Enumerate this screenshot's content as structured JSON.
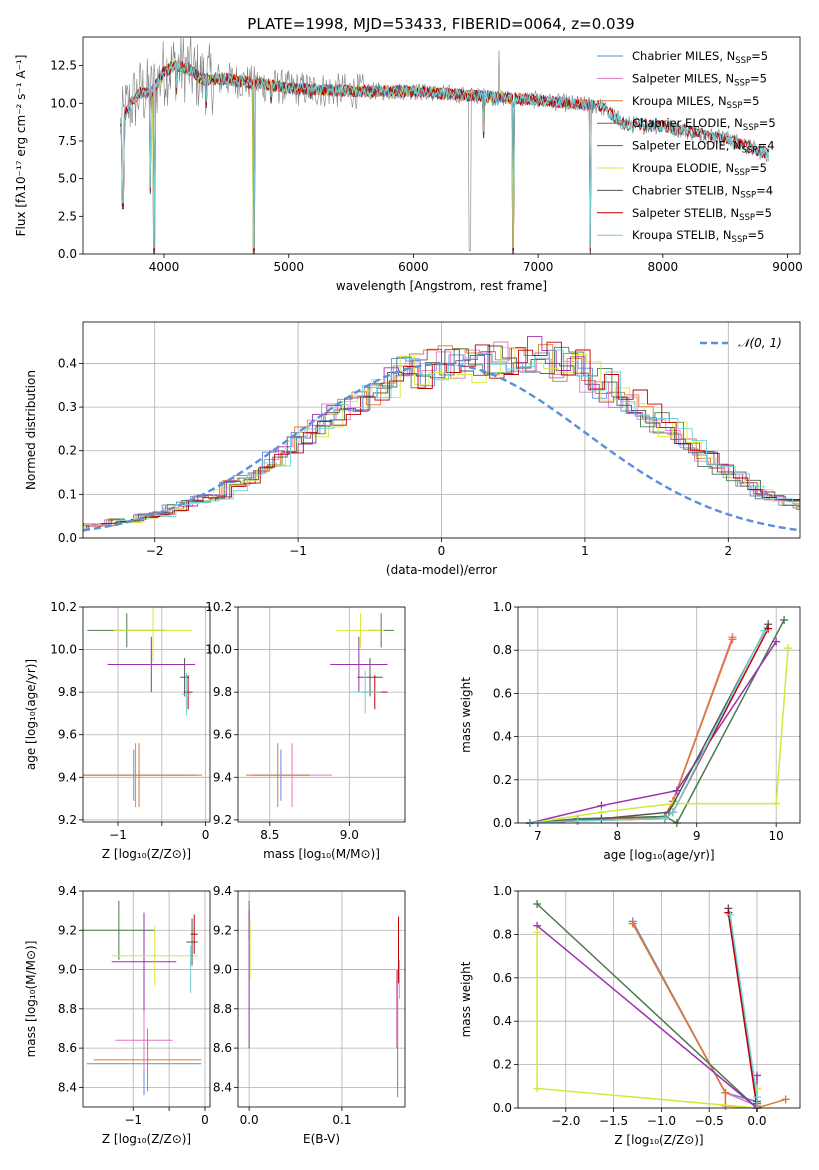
{
  "colors": {
    "chabrier_miles": "#5b8fd8",
    "salpeter_miles": "#e377c2",
    "kroupa_miles": "#e0772a",
    "chabrier_elodie": "#4a7a4a",
    "salpeter_elodie": "#9b30b0",
    "kroupa_elodie": "#d4e83a",
    "chabrier_stelib": "#555555",
    "salpeter_stelib": "#c00000",
    "kroupa_stelib": "#70d0d8",
    "gaussian": "#5b8fd8",
    "spectrum": "#7f7f7f"
  },
  "chart_data": [
    {
      "type": "line",
      "title": "PLATE=1998, MJD=53433, FIBERID=0064, z=0.039",
      "xlabel": "wavelength [Angstrom, rest frame]",
      "ylabel": "Flux [fλ10⁻¹⁷ erg cm⁻² s⁻¹ A⁻¹]",
      "xlim": [
        3350,
        9100
      ],
      "ylim": [
        0,
        14.4
      ],
      "xticks": [
        4000,
        5000,
        6000,
        7000,
        8000,
        9000
      ],
      "yticks": [
        0.0,
        2.5,
        5.0,
        7.5,
        10.0,
        12.5
      ],
      "legend_position": "top-right",
      "legend": [
        {
          "label": "Chabrier MILES, N",
          "sub": "SSP",
          "suffix": "=5",
          "color_key": "chabrier_miles"
        },
        {
          "label": "Salpeter MILES, N",
          "sub": "SSP",
          "suffix": "=5",
          "color_key": "salpeter_miles"
        },
        {
          "label": "Kroupa MILES, N",
          "sub": "SSP",
          "suffix": "=5",
          "color_key": "kroupa_miles"
        },
        {
          "label": "Chabrier ELODIE, N",
          "sub": "SSP",
          "suffix": "=5",
          "color_key": "chabrier_elodie"
        },
        {
          "label": "Salpeter ELODIE, N",
          "sub": "SSP",
          "suffix": "=4",
          "color_key": "salpeter_elodie"
        },
        {
          "label": "Kroupa ELODIE, N",
          "sub": "SSP",
          "suffix": "=5",
          "color_key": "kroupa_elodie"
        },
        {
          "label": "Chabrier STELIB, N",
          "sub": "SSP",
          "suffix": "=4",
          "color_key": "chabrier_stelib"
        },
        {
          "label": "Salpeter STELIB, N",
          "sub": "SSP",
          "suffix": "=5",
          "color_key": "salpeter_stelib"
        },
        {
          "label": "Kroupa STELIB, N",
          "sub": "SSP",
          "suffix": "=5",
          "color_key": "kroupa_stelib"
        }
      ],
      "continuum": {
        "x": [
          3650,
          3700,
          3800,
          3900,
          4000,
          4100,
          4200,
          4300,
          4500,
          5000,
          5500,
          6000,
          6500,
          7000,
          7500,
          7700,
          8000,
          8500,
          8850
        ],
        "y": [
          8.3,
          9.6,
          10.7,
          10.7,
          12.1,
          12.5,
          12.3,
          11.6,
          11.6,
          11.0,
          10.8,
          10.8,
          10.5,
          10.2,
          9.8,
          8.6,
          8.5,
          7.7,
          6.6
        ]
      },
      "dips": [
        {
          "x": 3670,
          "y": 3.0
        },
        {
          "x": 3890,
          "y": 4.0
        },
        {
          "x": 3920,
          "y": 0.0
        },
        {
          "x": 4100,
          "y": 10.6
        },
        {
          "x": 4340,
          "y": 9.7
        },
        {
          "x": 4720,
          "y": 0.0
        },
        {
          "x": 4861,
          "y": 10.0
        },
        {
          "x": 5175,
          "y": 10.3
        },
        {
          "x": 6563,
          "y": 7.7
        },
        {
          "x": 6800,
          "y": 0.0
        },
        {
          "x": 7420,
          "y": 0.0
        }
      ]
    },
    {
      "type": "bar",
      "xlabel": "(data-model)/error",
      "ylabel": "Normed distribution",
      "xlim": [
        -2.5,
        2.5
      ],
      "ylim": [
        0,
        0.495
      ],
      "xticks": [
        -2,
        -1,
        0,
        1,
        2
      ],
      "yticks": [
        0.0,
        0.1,
        0.2,
        0.3,
        0.4
      ],
      "legend_position": "top-right",
      "legend_label": "𝒩(0, 1)",
      "bin_width": 0.1,
      "bin_start": -2.6,
      "base_values": [
        0.02,
        0.03,
        0.03,
        0.04,
        0.04,
        0.05,
        0.055,
        0.07,
        0.08,
        0.09,
        0.1,
        0.12,
        0.13,
        0.16,
        0.18,
        0.21,
        0.24,
        0.26,
        0.28,
        0.3,
        0.32,
        0.34,
        0.36,
        0.38,
        0.38,
        0.39,
        0.4,
        0.4,
        0.4,
        0.4,
        0.41,
        0.41,
        0.42,
        0.41,
        0.4,
        0.39,
        0.37,
        0.35,
        0.33,
        0.31,
        0.28,
        0.26,
        0.24,
        0.21,
        0.18,
        0.16,
        0.14,
        0.12,
        0.1,
        0.09,
        0.08,
        0.07,
        0.06,
        0.05,
        0.04,
        0.035,
        0.03,
        0.025,
        0.02,
        0.015,
        0.01,
        0.01
      ]
    },
    {
      "type": "scatter",
      "xlabel": "Z [log₁₀(Z/Z⊙)]",
      "ylabel": "age  [log₁₀(age/yr)]",
      "xlim": [
        -1.4,
        0.05
      ],
      "ylim": [
        9.19,
        10.2
      ],
      "xticks": [
        -1,
        -0.5,
        0
      ],
      "xticklabels": [
        "−1",
        "",
        "0"
      ],
      "yticks": [
        9.2,
        9.4,
        9.6,
        9.8,
        10.0,
        10.2
      ],
      "points": [
        {
          "x": -0.82,
          "y": 9.41,
          "xerr": 0.72,
          "yerr": 0.12,
          "color_key": "chabrier_miles"
        },
        {
          "x": -0.8,
          "y": 9.41,
          "xerr": 0.62,
          "yerr": 0.15,
          "color_key": "salpeter_miles"
        },
        {
          "x": -0.76,
          "y": 9.41,
          "xerr": 0.72,
          "yerr": 0.15,
          "color_key": "kroupa_miles"
        },
        {
          "x": -0.9,
          "y": 10.09,
          "xerr": 0.45,
          "yerr": 0.08,
          "color_key": "chabrier_elodie"
        },
        {
          "x": -0.62,
          "y": 9.93,
          "xerr": 0.5,
          "yerr": 0.13,
          "color_key": "salpeter_elodie"
        },
        {
          "x": -0.6,
          "y": 10.09,
          "xerr": 0.45,
          "yerr": 0.15,
          "color_key": "kroupa_elodie"
        },
        {
          "x": -0.24,
          "y": 9.87,
          "xerr": 0.05,
          "yerr": 0.09,
          "color_key": "chabrier_stelib"
        },
        {
          "x": -0.2,
          "y": 9.8,
          "xerr": 0.05,
          "yerr": 0.08,
          "color_key": "salpeter_stelib"
        },
        {
          "x": -0.22,
          "y": 9.79,
          "xerr": 0.05,
          "yerr": 0.1,
          "color_key": "kroupa_stelib"
        }
      ]
    },
    {
      "type": "scatter",
      "xlabel": "mass [log₁₀(M/M⊙)]",
      "ylabel": "",
      "xlim": [
        8.3,
        9.35
      ],
      "ylim": [
        9.19,
        10.2
      ],
      "xticks": [
        8.5,
        9.0
      ],
      "xticklabels": [
        "8.5",
        "9.0"
      ],
      "yticks": [
        9.2,
        9.4,
        9.6,
        9.8,
        10.0,
        10.2
      ],
      "points": [
        {
          "x": 8.57,
          "y": 9.41,
          "xerr": 0.18,
          "yerr": 0.12,
          "color_key": "chabrier_miles"
        },
        {
          "x": 8.64,
          "y": 9.41,
          "xerr": 0.25,
          "yerr": 0.15,
          "color_key": "salpeter_miles"
        },
        {
          "x": 8.55,
          "y": 9.41,
          "xerr": 0.2,
          "yerr": 0.15,
          "color_key": "kroupa_miles"
        },
        {
          "x": 9.2,
          "y": 10.09,
          "xerr": 0.08,
          "yerr": 0.08,
          "color_key": "chabrier_elodie"
        },
        {
          "x": 9.06,
          "y": 9.93,
          "xerr": 0.18,
          "yerr": 0.13,
          "color_key": "salpeter_elodie"
        },
        {
          "x": 9.07,
          "y": 10.09,
          "xerr": 0.15,
          "yerr": 0.08,
          "color_key": "kroupa_elodie"
        },
        {
          "x": 9.13,
          "y": 9.87,
          "xerr": 0.08,
          "yerr": 0.09,
          "color_key": "chabrier_stelib"
        },
        {
          "x": 9.16,
          "y": 9.8,
          "xerr": 0.08,
          "yerr": 0.08,
          "color_key": "salpeter_stelib"
        },
        {
          "x": 9.1,
          "y": 9.8,
          "xerr": 0.1,
          "yerr": 0.1,
          "color_key": "kroupa_stelib"
        }
      ]
    },
    {
      "type": "line",
      "xlabel": "age  [log₁₀(age/yr)]",
      "ylabel": "mass weight",
      "xlim": [
        6.75,
        10.3
      ],
      "ylim": [
        0,
        1.0
      ],
      "xticks": [
        7,
        8,
        9,
        10
      ],
      "yticks": [
        0.0,
        0.2,
        0.4,
        0.6,
        0.8,
        1.0
      ],
      "series": [
        {
          "color_key": "chabrier_miles",
          "x": [
            6.9,
            7.5,
            8.6,
            8.7,
            9.45
          ],
          "y": [
            0.0,
            0.01,
            0.03,
            0.1,
            0.86
          ]
        },
        {
          "color_key": "salpeter_miles",
          "x": [
            6.9,
            7.5,
            8.6,
            8.7,
            9.45
          ],
          "y": [
            0.0,
            0.01,
            0.03,
            0.1,
            0.86
          ]
        },
        {
          "color_key": "kroupa_miles",
          "x": [
            6.9,
            7.5,
            8.6,
            8.7,
            9.45
          ],
          "y": [
            0.0,
            0.01,
            0.03,
            0.1,
            0.85
          ]
        },
        {
          "color_key": "chabrier_elodie",
          "x": [
            6.9,
            7.5,
            8.6,
            8.75,
            10.1
          ],
          "y": [
            0.0,
            0.02,
            0.03,
            0.0,
            0.94
          ]
        },
        {
          "color_key": "salpeter_elodie",
          "x": [
            6.9,
            7.8,
            8.75,
            10.0
          ],
          "y": [
            0.0,
            0.08,
            0.15,
            0.84
          ]
        },
        {
          "color_key": "kroupa_elodie",
          "x": [
            6.9,
            7.8,
            8.7,
            10.0,
            10.15
          ],
          "y": [
            0.0,
            0.05,
            0.09,
            0.09,
            0.81
          ]
        },
        {
          "color_key": "chabrier_stelib",
          "x": [
            6.9,
            7.8,
            8.65,
            9.9
          ],
          "y": [
            0.0,
            0.02,
            0.05,
            0.92
          ]
        },
        {
          "color_key": "salpeter_stelib",
          "x": [
            6.9,
            7.5,
            8.6,
            8.7,
            9.9
          ],
          "y": [
            0.0,
            0.01,
            0.02,
            0.05,
            0.9
          ]
        },
        {
          "color_key": "kroupa_stelib",
          "x": [
            6.9,
            7.5,
            8.6,
            8.7,
            9.85
          ],
          "y": [
            0.0,
            0.01,
            0.02,
            0.05,
            0.89
          ]
        }
      ]
    },
    {
      "type": "scatter",
      "xlabel": "Z [log₁₀(Z/Z⊙)]",
      "ylabel": "mass [log₁₀(M/M⊙)]",
      "xlim": [
        -1.7,
        0.07
      ],
      "ylim": [
        8.3,
        9.4
      ],
      "xticks": [
        -1,
        -0.5,
        0
      ],
      "xticklabels": [
        "−1",
        "",
        "0"
      ],
      "yticks": [
        8.4,
        8.6,
        8.8,
        9.0,
        9.2,
        9.4
      ],
      "points": [
        {
          "x": -0.85,
          "y": 8.52,
          "xerr": 0.8,
          "yerr": 0.16,
          "color_key": "chabrier_miles"
        },
        {
          "x": -0.85,
          "y": 8.64,
          "xerr": 0.4,
          "yerr": 0.15,
          "color_key": "salpeter_miles"
        },
        {
          "x": -0.8,
          "y": 8.54,
          "xerr": 0.75,
          "yerr": 0.16,
          "color_key": "kroupa_miles"
        },
        {
          "x": -1.2,
          "y": 9.2,
          "xerr": 0.5,
          "yerr": 0.15,
          "color_key": "chabrier_elodie"
        },
        {
          "x": -0.85,
          "y": 9.04,
          "xerr": 0.45,
          "yerr": 0.25,
          "color_key": "salpeter_elodie"
        },
        {
          "x": -0.7,
          "y": 9.07,
          "xerr": 0.6,
          "yerr": 0.15,
          "color_key": "kroupa_elodie"
        },
        {
          "x": -0.18,
          "y": 9.14,
          "xerr": 0.08,
          "yerr": 0.12,
          "color_key": "chabrier_stelib"
        },
        {
          "x": -0.15,
          "y": 9.18,
          "xerr": 0.05,
          "yerr": 0.1,
          "color_key": "salpeter_stelib"
        },
        {
          "x": -0.2,
          "y": 9.0,
          "xerr": 0.05,
          "yerr": 0.12,
          "color_key": "kroupa_stelib"
        }
      ]
    },
    {
      "type": "scatter",
      "xlabel": "E(B-V)",
      "ylabel": "",
      "xlim": [
        -0.012,
        0.168
      ],
      "ylim": [
        8.3,
        9.4
      ],
      "xticks": [
        0.0,
        0.1
      ],
      "xticklabels": [
        "0.0",
        "0.1"
      ],
      "yticks": [
        8.4,
        8.6,
        8.8,
        9.0,
        9.2,
        9.4
      ],
      "points": [
        {
          "x": 0.0,
          "y": 9.25,
          "xerr": 0,
          "yerr": 0.1,
          "color_key": "chabrier_elodie"
        },
        {
          "x": 0.0,
          "y": 8.95,
          "xerr": 0,
          "yerr": 0.35,
          "color_key": "salpeter_elodie"
        },
        {
          "x": 0.001,
          "y": 9.1,
          "xerr": 0,
          "yerr": 0.15,
          "color_key": "kroupa_elodie"
        },
        {
          "x": 0.16,
          "y": 8.6,
          "xerr": 0,
          "yerr": 0.25,
          "color_key": "chabrier_miles"
        },
        {
          "x": 0.16,
          "y": 8.7,
          "xerr": 0,
          "yerr": 0.3,
          "color_key": "kroupa_miles"
        },
        {
          "x": 0.161,
          "y": 9.1,
          "xerr": 0,
          "yerr": 0.17,
          "color_key": "salpeter_stelib"
        },
        {
          "x": 0.162,
          "y": 8.95,
          "xerr": 0,
          "yerr": 0.1,
          "color_key": "kroupa_stelib"
        },
        {
          "x": 0.159,
          "y": 8.8,
          "xerr": 0,
          "yerr": 0.2,
          "color_key": "salpeter_miles"
        }
      ]
    },
    {
      "type": "line",
      "xlabel": "Z [log₁₀(Z/Z⊙)]",
      "ylabel": "mass weight",
      "xlim": [
        -2.5,
        0.45
      ],
      "ylim": [
        0,
        1.0
      ],
      "xticks": [
        -2.0,
        -1.5,
        -1.0,
        -0.5,
        0.0
      ],
      "xticklabels": [
        "−2.0",
        "−1.5",
        "−1.0",
        "−0.5",
        "0.0"
      ],
      "yticks": [
        0.0,
        0.2,
        0.4,
        0.6,
        0.8,
        1.0
      ],
      "series": [
        {
          "color_key": "chabrier_miles",
          "x": [
            -1.3,
            -0.33,
            0.0,
            0.0
          ],
          "y": [
            0.86,
            0.07,
            0.03,
            0.0
          ]
        },
        {
          "color_key": "salpeter_miles",
          "x": [
            -1.3,
            -0.33,
            0.0
          ],
          "y": [
            0.85,
            0.07,
            0.01
          ]
        },
        {
          "color_key": "kroupa_miles",
          "x": [
            -1.3,
            -0.33,
            -0.33,
            0.0,
            0.3
          ],
          "y": [
            0.85,
            0.07,
            0.01,
            0.0,
            0.04
          ]
        },
        {
          "color_key": "chabrier_elodie",
          "x": [
            -2.3,
            0.0,
            0.0
          ],
          "y": [
            0.94,
            0.0,
            0.02
          ]
        },
        {
          "color_key": "salpeter_elodie",
          "x": [
            -2.3,
            0.0,
            0.0
          ],
          "y": [
            0.84,
            0.0,
            0.15
          ]
        },
        {
          "color_key": "kroupa_elodie",
          "x": [
            -2.3,
            -2.3,
            0.0,
            0.0
          ],
          "y": [
            0.81,
            0.09,
            0.0,
            0.09
          ]
        },
        {
          "color_key": "chabrier_stelib",
          "x": [
            -0.3,
            0.0,
            0.0
          ],
          "y": [
            0.92,
            0.03,
            0.0
          ]
        },
        {
          "color_key": "salpeter_stelib",
          "x": [
            -0.3,
            0.0
          ],
          "y": [
            0.9,
            0.0
          ]
        },
        {
          "color_key": "kroupa_stelib",
          "x": [
            -0.28,
            0.0,
            0.0
          ],
          "y": [
            0.89,
            0.05,
            0.0
          ]
        }
      ]
    }
  ]
}
